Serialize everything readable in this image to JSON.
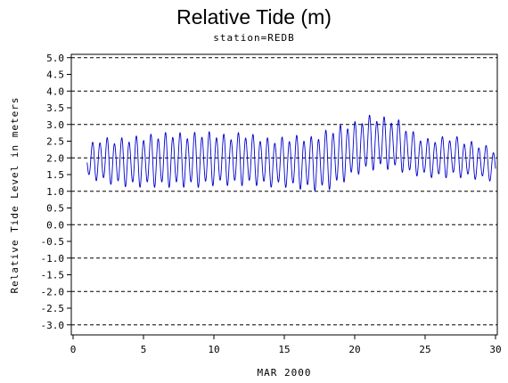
{
  "chart_data": {
    "type": "line",
    "title": "Relative Tide (m)",
    "subtitle": "station=REDB",
    "xlabel": "MAR 2000",
    "ylabel": "Relative Tide Level in meters",
    "xlim": [
      0,
      30
    ],
    "ylim": [
      -3.0,
      5.0
    ],
    "x_ticks": [
      0,
      5,
      10,
      15,
      20,
      25,
      30
    ],
    "y_ticks": [
      5.0,
      4.5,
      4.0,
      3.5,
      3.0,
      2.5,
      2.0,
      1.5,
      1.0,
      0.5,
      0.0,
      -0.5,
      -1.0,
      -1.5,
      -2.0,
      -2.5,
      -3.0
    ],
    "y_tick_labels": [
      "5.0",
      "4.5",
      "4.0",
      "3.5",
      "3.0",
      "2.5",
      "2.0",
      "1.5",
      "1.0",
      "0.5",
      "0.0",
      "-0.5",
      "-1.0",
      "-1.5",
      "-2.0",
      "-2.5",
      "-3.0"
    ],
    "gridlines_y": [
      5.0,
      4.0,
      3.0,
      2.0,
      1.0,
      0.0,
      -1.0,
      -2.0,
      -3.0
    ],
    "grid_style": "dashed",
    "series": [
      {
        "color": "#0000cc",
        "x_start": 1.0,
        "x_end": 30.0,
        "period_days": 0.5175,
        "mean_level": 1.95,
        "high_low": [
          [
            1.0,
            2.3,
            1.45
          ],
          [
            2.0,
            2.55,
            1.35
          ],
          [
            3.0,
            2.5,
            1.25
          ],
          [
            4.0,
            2.55,
            1.2
          ],
          [
            5.0,
            2.6,
            1.2
          ],
          [
            6.0,
            2.65,
            1.2
          ],
          [
            7.0,
            2.7,
            1.2
          ],
          [
            8.0,
            2.65,
            1.2
          ],
          [
            9.0,
            2.7,
            1.2
          ],
          [
            10.0,
            2.7,
            1.25
          ],
          [
            11.0,
            2.6,
            1.25
          ],
          [
            12.0,
            2.7,
            1.25
          ],
          [
            13.0,
            2.6,
            1.25
          ],
          [
            14.0,
            2.5,
            1.2
          ],
          [
            15.0,
            2.55,
            1.2
          ],
          [
            16.0,
            2.6,
            1.15
          ],
          [
            17.0,
            2.55,
            1.1
          ],
          [
            18.0,
            2.75,
            1.1
          ],
          [
            19.0,
            2.9,
            1.3
          ],
          [
            20.0,
            3.0,
            1.55
          ],
          [
            21.0,
            3.2,
            1.7
          ],
          [
            22.0,
            3.15,
            1.75
          ],
          [
            23.0,
            3.1,
            1.7
          ],
          [
            24.0,
            2.75,
            1.55
          ],
          [
            25.0,
            2.5,
            1.5
          ],
          [
            26.0,
            2.55,
            1.45
          ],
          [
            27.0,
            2.6,
            1.5
          ],
          [
            28.0,
            2.45,
            1.45
          ],
          [
            29.0,
            2.35,
            1.4
          ],
          [
            30.0,
            2.2,
            1.35
          ]
        ]
      }
    ]
  }
}
